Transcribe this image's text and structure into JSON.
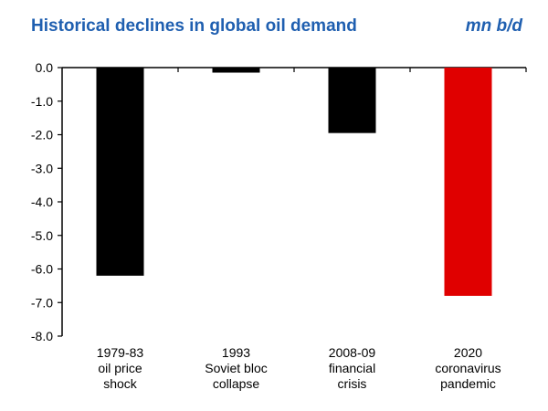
{
  "chart_data": {
    "type": "bar",
    "title": "Historical declines in global oil demand",
    "unit": "mn b/d",
    "categories": [
      [
        "1979-83",
        "oil price",
        "shock"
      ],
      [
        "1993",
        "Soviet bloc",
        "collapse"
      ],
      [
        "2008-09",
        "financial",
        "crisis"
      ],
      [
        "2020",
        "coronavirus",
        "pandemic"
      ]
    ],
    "values": [
      -6.2,
      -0.15,
      -1.95,
      -6.8
    ],
    "bar_colors": [
      "#000000",
      "#000000",
      "#000000",
      "#e00000"
    ],
    "ylim": [
      -8.0,
      0.0
    ],
    "yticks": [
      "0.0",
      "-1.0",
      "-2.0",
      "-3.0",
      "-4.0",
      "-5.0",
      "-6.0",
      "-7.0",
      "-8.0"
    ],
    "xlabel": "",
    "ylabel": "",
    "grid": false
  },
  "colors": {
    "title": "#1f5fb0",
    "axis": "#000000"
  }
}
